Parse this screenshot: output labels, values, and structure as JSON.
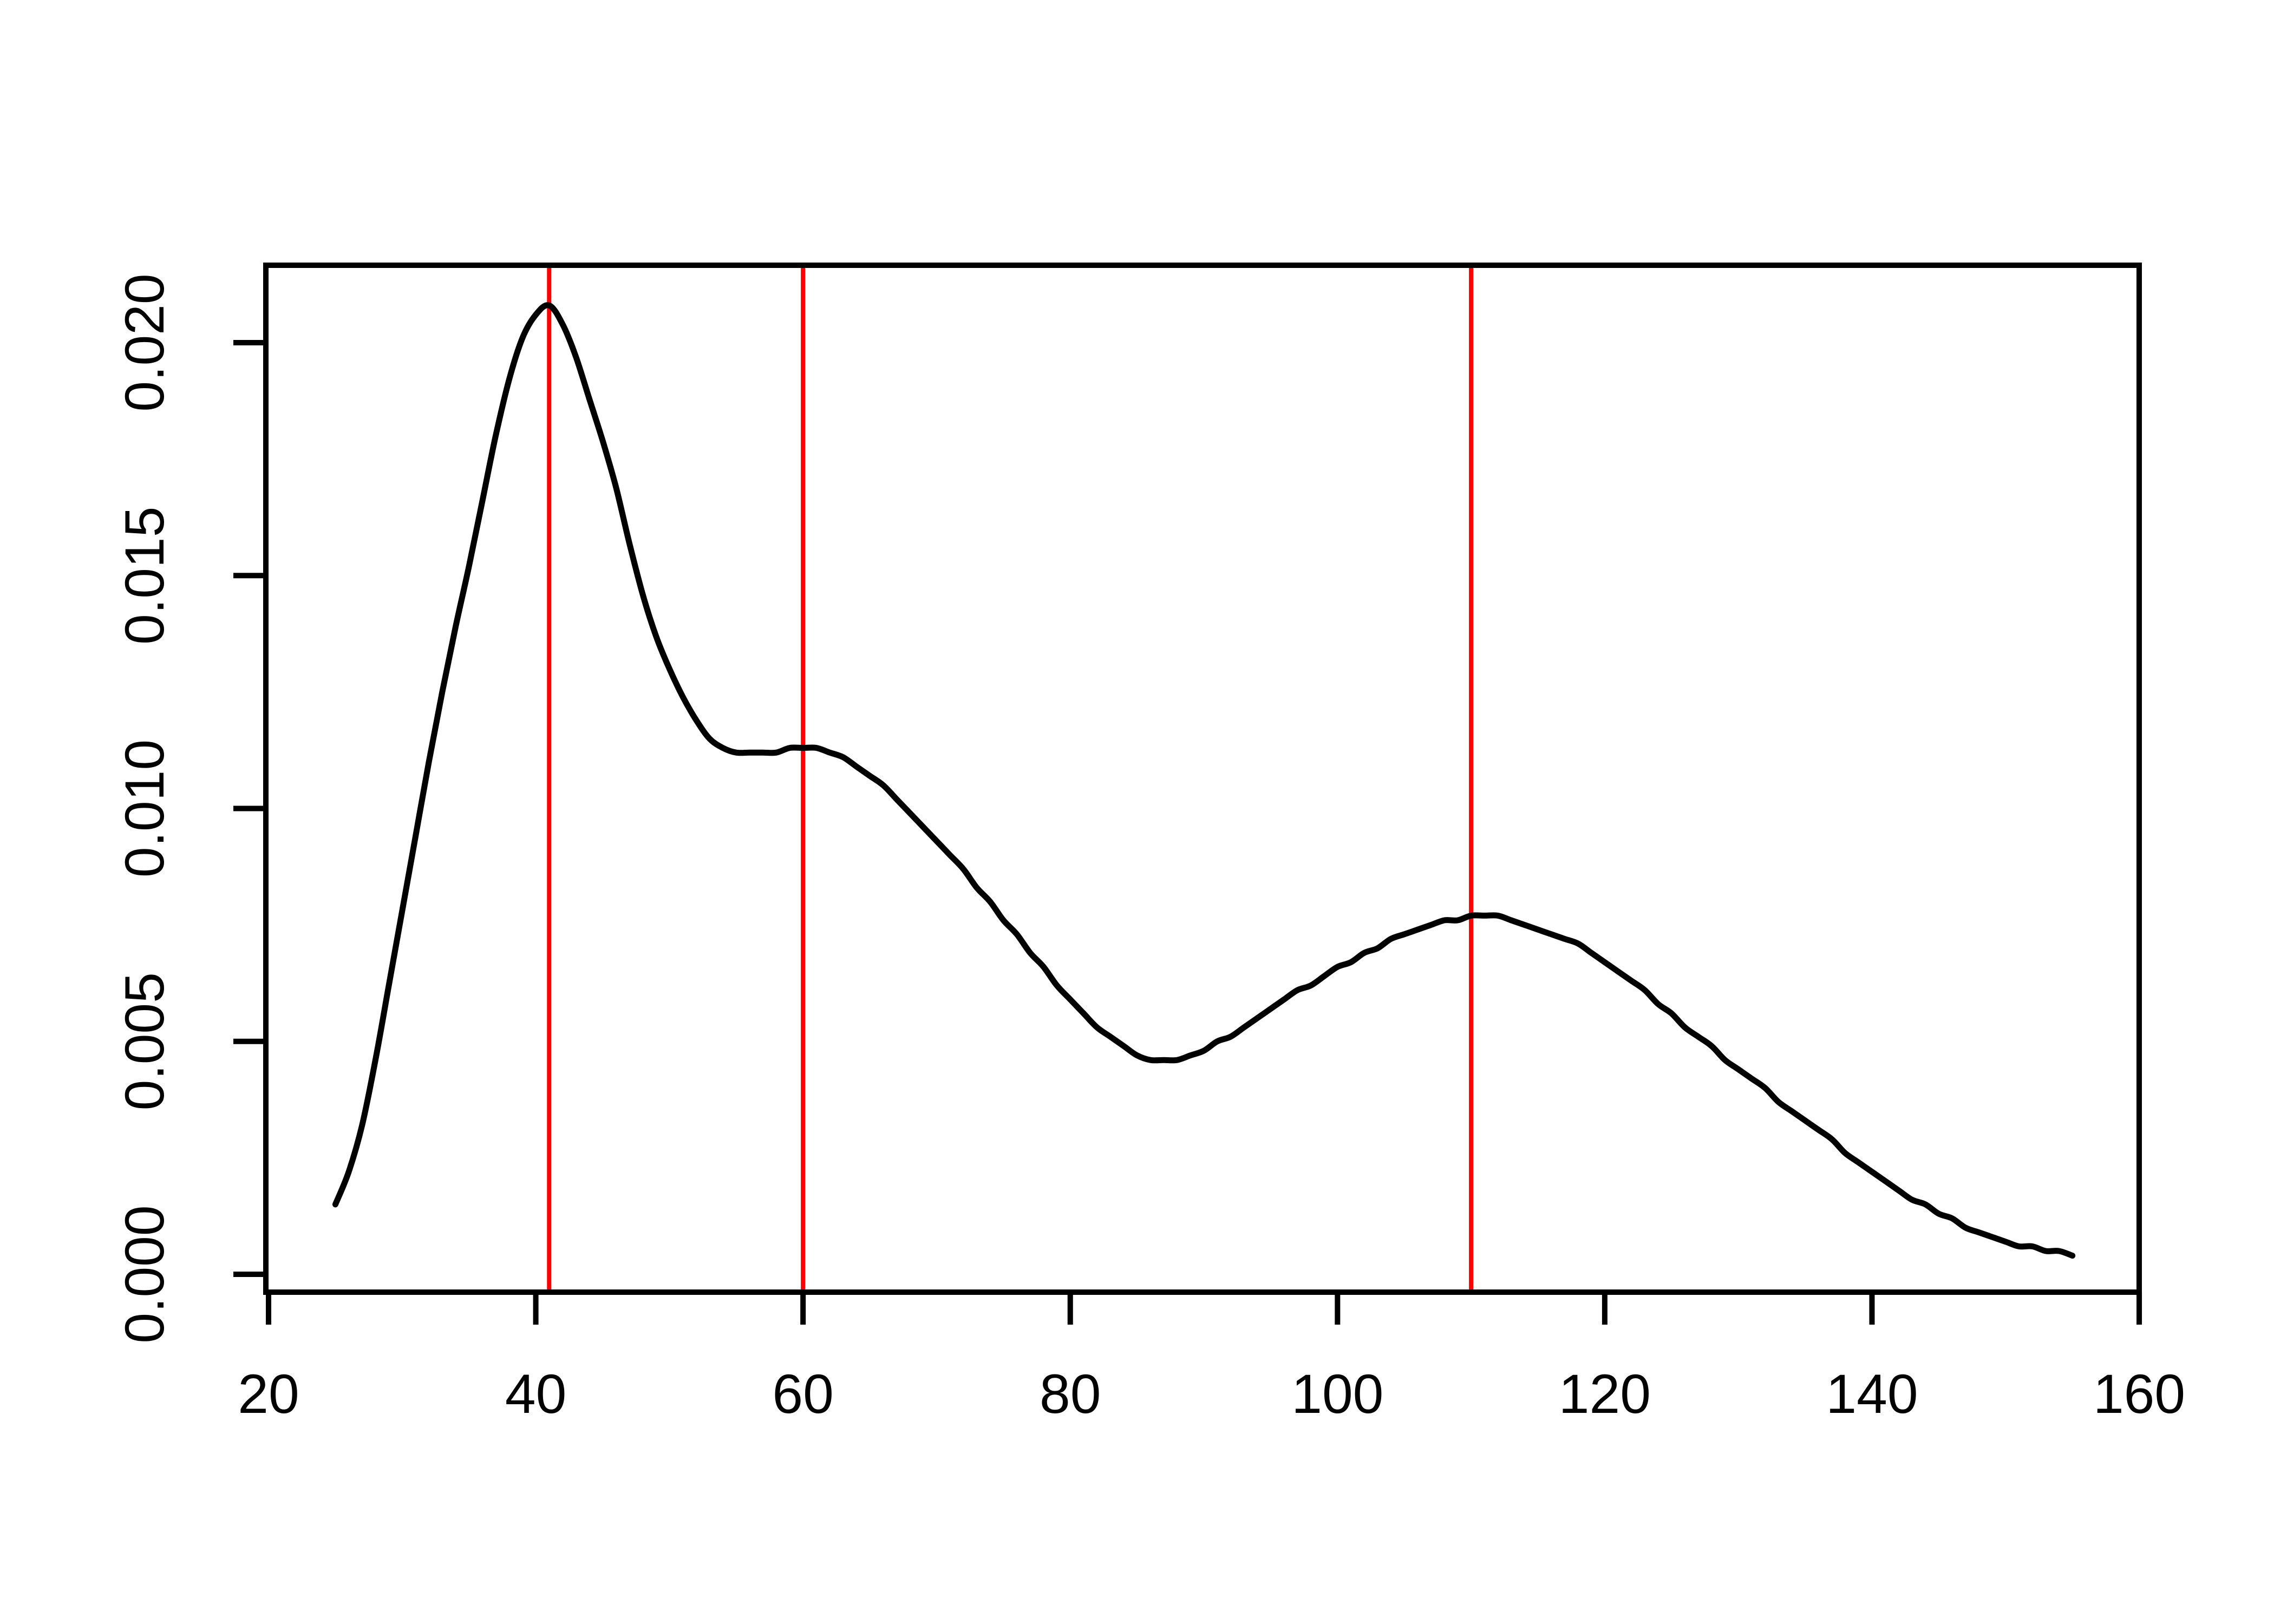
{
  "chart_data": {
    "type": "line",
    "subtype": "kernel-density-curve",
    "title": "",
    "xlabel": "",
    "ylabel": "",
    "background_color": "#FFFFFF",
    "axis_color": "#000000",
    "grid": false,
    "legend": null,
    "xlim": [
      19.8,
      160.2
    ],
    "ylim": [
      -0.0004,
      0.0217
    ],
    "x_ticks": [
      20,
      40,
      60,
      80,
      100,
      120,
      140,
      160
    ],
    "x_tick_labels": [
      "20",
      "40",
      "60",
      "80",
      "100",
      "120",
      "140",
      "160"
    ],
    "y_ticks": [
      0.0,
      0.005,
      0.01,
      0.015,
      0.02
    ],
    "y_tick_labels": [
      "0.000",
      "0.005",
      "0.010",
      "0.015",
      "0.020"
    ],
    "y_tick_label_rotation": -90,
    "series": [
      {
        "name": "density",
        "color": "#000000",
        "points": [
          [
            25,
            0.0015
          ],
          [
            26,
            0.0022
          ],
          [
            27,
            0.0032
          ],
          [
            28,
            0.0046
          ],
          [
            29,
            0.0062
          ],
          [
            30,
            0.0078
          ],
          [
            31,
            0.0094
          ],
          [
            32,
            0.011
          ],
          [
            33,
            0.0125
          ],
          [
            34,
            0.0139
          ],
          [
            35,
            0.0152
          ],
          [
            36,
            0.0166
          ],
          [
            37,
            0.018
          ],
          [
            38,
            0.0192
          ],
          [
            39,
            0.0201
          ],
          [
            40,
            0.0206
          ],
          [
            41,
            0.0208
          ],
          [
            42,
            0.0204
          ],
          [
            43,
            0.0197
          ],
          [
            44,
            0.0188
          ],
          [
            45,
            0.0179
          ],
          [
            46,
            0.0169
          ],
          [
            47,
            0.0157
          ],
          [
            48,
            0.0146
          ],
          [
            49,
            0.0137
          ],
          [
            50,
            0.013
          ],
          [
            51,
            0.0124
          ],
          [
            52,
            0.0119
          ],
          [
            53,
            0.0115
          ],
          [
            54,
            0.0113
          ],
          [
            55,
            0.0112
          ],
          [
            56,
            0.0112
          ],
          [
            57,
            0.0112
          ],
          [
            58,
            0.0112
          ],
          [
            59,
            0.0113
          ],
          [
            60,
            0.0113
          ],
          [
            61,
            0.0113
          ],
          [
            62,
            0.0112
          ],
          [
            63,
            0.0111
          ],
          [
            64,
            0.0109
          ],
          [
            65,
            0.0107
          ],
          [
            66,
            0.0105
          ],
          [
            67,
            0.0102
          ],
          [
            68,
            0.0099
          ],
          [
            69,
            0.0096
          ],
          [
            70,
            0.0093
          ],
          [
            71,
            0.009
          ],
          [
            72,
            0.0087
          ],
          [
            73,
            0.0083
          ],
          [
            74,
            0.008
          ],
          [
            75,
            0.0076
          ],
          [
            76,
            0.0073
          ],
          [
            77,
            0.0069
          ],
          [
            78,
            0.0066
          ],
          [
            79,
            0.0062
          ],
          [
            80,
            0.0059
          ],
          [
            81,
            0.0056
          ],
          [
            82,
            0.0053
          ],
          [
            83,
            0.0051
          ],
          [
            84,
            0.0049
          ],
          [
            85,
            0.0047
          ],
          [
            86,
            0.0046
          ],
          [
            87,
            0.0046
          ],
          [
            88,
            0.0046
          ],
          [
            89,
            0.0047
          ],
          [
            90,
            0.0048
          ],
          [
            91,
            0.005
          ],
          [
            92,
            0.0051
          ],
          [
            93,
            0.0053
          ],
          [
            94,
            0.0055
          ],
          [
            95,
            0.0057
          ],
          [
            96,
            0.0059
          ],
          [
            97,
            0.0061
          ],
          [
            98,
            0.0062
          ],
          [
            99,
            0.0064
          ],
          [
            100,
            0.0066
          ],
          [
            101,
            0.0067
          ],
          [
            102,
            0.0069
          ],
          [
            103,
            0.007
          ],
          [
            104,
            0.0072
          ],
          [
            105,
            0.0073
          ],
          [
            106,
            0.0074
          ],
          [
            107,
            0.0075
          ],
          [
            108,
            0.0076
          ],
          [
            109,
            0.0076
          ],
          [
            110,
            0.0077
          ],
          [
            111,
            0.0077
          ],
          [
            112,
            0.0077
          ],
          [
            113,
            0.0076
          ],
          [
            114,
            0.0075
          ],
          [
            115,
            0.0074
          ],
          [
            116,
            0.0073
          ],
          [
            117,
            0.0072
          ],
          [
            118,
            0.0071
          ],
          [
            119,
            0.0069
          ],
          [
            120,
            0.0067
          ],
          [
            121,
            0.0065
          ],
          [
            122,
            0.0063
          ],
          [
            123,
            0.0061
          ],
          [
            124,
            0.0058
          ],
          [
            125,
            0.0056
          ],
          [
            126,
            0.0053
          ],
          [
            127,
            0.0051
          ],
          [
            128,
            0.0049
          ],
          [
            129,
            0.0046
          ],
          [
            130,
            0.0044
          ],
          [
            131,
            0.0042
          ],
          [
            132,
            0.004
          ],
          [
            133,
            0.0037
          ],
          [
            134,
            0.0035
          ],
          [
            135,
            0.0033
          ],
          [
            136,
            0.0031
          ],
          [
            137,
            0.0029
          ],
          [
            138,
            0.0026
          ],
          [
            139,
            0.0024
          ],
          [
            140,
            0.0022
          ],
          [
            141,
            0.002
          ],
          [
            142,
            0.0018
          ],
          [
            143,
            0.0016
          ],
          [
            144,
            0.0015
          ],
          [
            145,
            0.0013
          ],
          [
            146,
            0.0012
          ],
          [
            147,
            0.001
          ],
          [
            148,
            0.0009
          ],
          [
            149,
            0.0008
          ],
          [
            150,
            0.0007
          ],
          [
            151,
            0.0006
          ],
          [
            152,
            0.0006
          ],
          [
            153,
            0.0005
          ],
          [
            154,
            0.0005
          ],
          [
            155,
            0.0004
          ]
        ]
      }
    ],
    "vlines": {
      "color": "#FF0000",
      "x_values": [
        41,
        60,
        110
      ]
    }
  }
}
